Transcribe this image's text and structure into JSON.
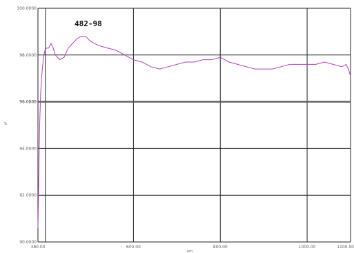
{
  "chart_data": {
    "type": "line",
    "title": "482-98",
    "xlabel": "nm",
    "ylabel": "%",
    "xlim": [
      380,
      1100
    ],
    "ylim": [
      90,
      100
    ],
    "x_ticks": [
      "380.00",
      "600.00",
      "800.00",
      "1000.00",
      "1100.00"
    ],
    "y_ticks": [
      "90.0000",
      "92.0000",
      "94.0000",
      "96.0000",
      "98.0000",
      "100.0000"
    ],
    "reference_line": {
      "y": 96.0,
      "label": "96.0256"
    },
    "grid": true,
    "series": [
      {
        "color": "#b040b8",
        "x": [
          380,
          382,
          384,
          386,
          388,
          390,
          393,
          396,
          400,
          405,
          410,
          415,
          420,
          430,
          440,
          450,
          460,
          470,
          480,
          490,
          500,
          510,
          520,
          540,
          560,
          580,
          600,
          620,
          640,
          660,
          680,
          700,
          720,
          740,
          760,
          780,
          800,
          820,
          840,
          860,
          880,
          900,
          920,
          940,
          960,
          980,
          1000,
          1020,
          1040,
          1060,
          1080,
          1090,
          1095,
          1100
        ],
        "y": [
          90.6,
          93.0,
          95.0,
          96.3,
          96.9,
          97.4,
          97.9,
          98.2,
          98.3,
          98.3,
          98.5,
          98.3,
          98.0,
          97.8,
          97.9,
          98.3,
          98.5,
          98.7,
          98.8,
          98.8,
          98.6,
          98.5,
          98.4,
          98.3,
          98.2,
          98.0,
          97.8,
          97.7,
          97.5,
          97.4,
          97.5,
          97.6,
          97.7,
          97.7,
          97.8,
          97.8,
          97.9,
          97.7,
          97.6,
          97.5,
          97.4,
          97.4,
          97.4,
          97.5,
          97.6,
          97.6,
          97.6,
          97.6,
          97.7,
          97.6,
          97.5,
          97.6,
          97.4,
          97.1
        ]
      }
    ]
  }
}
